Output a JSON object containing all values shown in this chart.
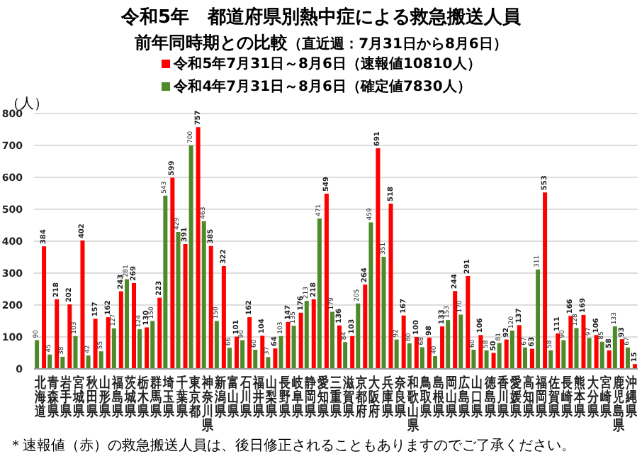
{
  "chart_data": {
    "type": "bar",
    "title": "令和5年　都道府県別熱中症による救急搬送人員",
    "subtitle": "前年同時期との比較",
    "annotations": [
      "（直近週：7月31日から8月6日）",
      "＊速報値（赤）の救急搬送人員は、後日修正されることもありますのでご了承ください。"
    ],
    "ylabel": "（人）",
    "categories": [
      "北海道",
      "青森県",
      "岩手県",
      "宮城県",
      "秋田県",
      "山形県",
      "福島県",
      "茨城県",
      "栃木県",
      "群馬県",
      "埼玉県",
      "千葉県",
      "東京都",
      "神奈川県",
      "新潟県",
      "富山県",
      "石川県",
      "福井県",
      "山梨県",
      "長野県",
      "岐阜県",
      "静岡県",
      "愛知県",
      "三重県",
      "滋賀県",
      "京都府",
      "大阪府",
      "兵庫県",
      "奈良県",
      "和歌山県",
      "鳥取県",
      "島根県",
      "岡山県",
      "広島県",
      "山口県",
      "徳島県",
      "香川県",
      "愛媛県",
      "高知県",
      "福岡県",
      "佐賀県",
      "長崎県",
      "熊本県",
      "大分県",
      "宮崎県",
      "鹿児島県",
      "沖縄県"
    ],
    "series": [
      {
        "name": "令和5年7月31日～8月6日（速報値10810人）",
        "color": "#ff0000",
        "values": [
          384,
          218,
          202,
          402,
          157,
          162,
          243,
          269,
          130,
          223,
          599,
          391,
          757,
          385,
          322,
          101,
          162,
          104,
          64,
          147,
          176,
          218,
          549,
          136,
          103,
          264,
          691,
          518,
          167,
          100,
          98,
          133,
          244,
          291,
          106,
          50,
          92,
          137,
          63,
          553,
          111,
          166,
          169,
          106,
          58,
          93,
          15
        ]
      },
      {
        "name": "令和4年7月31日～8月6日（確定値7830人）",
        "color": "#4e8a2a",
        "values": [
          90,
          45,
          38,
          103,
          42,
          55,
          127,
          281,
          124,
          150,
          543,
          429,
          700,
          463,
          150,
          66,
          90,
          60,
          37,
          103,
          135,
          213,
          471,
          179,
          84,
          205,
          459,
          351,
          92,
          80,
          68,
          40,
          153,
          170,
          60,
          58,
          81,
          120,
          67,
          311,
          58,
          90,
          128,
          97,
          85,
          133,
          67
        ]
      }
    ],
    "ylim": [
      0,
      800
    ],
    "yticks": [
      0,
      100,
      200,
      300,
      400,
      500,
      600,
      700,
      800
    ],
    "grid": "y",
    "legend": "top",
    "data_labels": true
  }
}
